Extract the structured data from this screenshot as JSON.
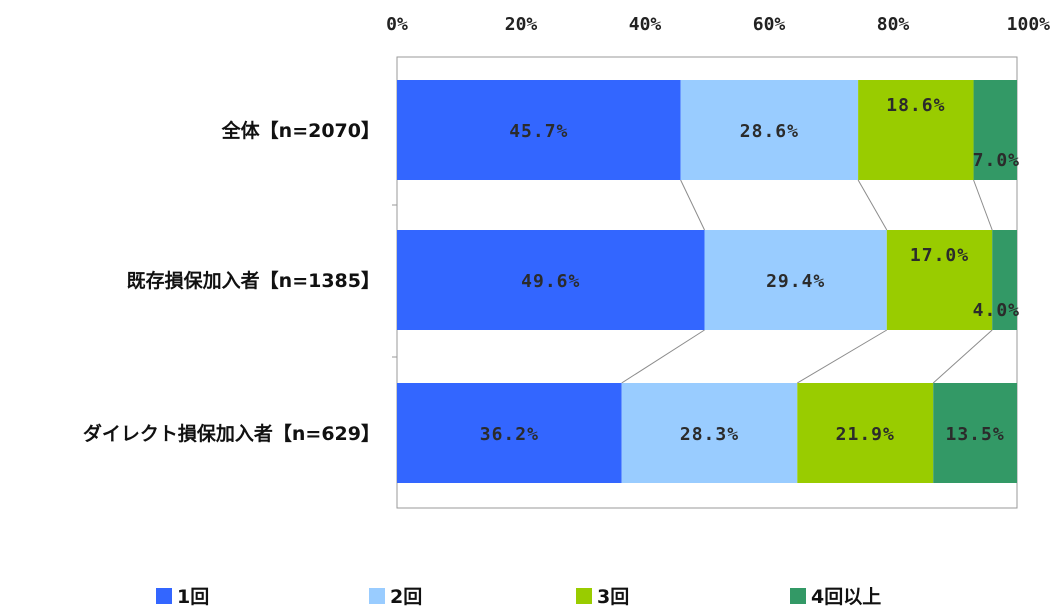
{
  "chart_data": {
    "type": "bar",
    "orientation": "horizontal",
    "stacked": "percent",
    "categories": [
      "全体【n=2070】",
      "既存損保加入者【n=1385】",
      "ダイレクト損保加入者【n=629】"
    ],
    "series": [
      {
        "name": "1回",
        "color": "#3366ff",
        "values": [
          45.7,
          49.6,
          36.2
        ],
        "labels": [
          "45.7%",
          "49.6%",
          "36.2%"
        ]
      },
      {
        "name": "2回",
        "color": "#99ccff",
        "values": [
          28.6,
          29.4,
          28.3
        ],
        "labels": [
          "28.6%",
          "29.4%",
          "28.3%"
        ]
      },
      {
        "name": "3回",
        "color": "#99cc00",
        "values": [
          18.6,
          17.0,
          21.9
        ],
        "labels": [
          "18.6%",
          "17.0%",
          "21.9%"
        ]
      },
      {
        "name": "4回以上",
        "color": "#339966",
        "values": [
          7.0,
          4.0,
          13.5
        ],
        "labels": [
          "7.0%",
          "4.0%",
          "13.5%"
        ]
      }
    ],
    "xlim": [
      0,
      100
    ],
    "xticks": [
      "0%",
      "20%",
      "40%",
      "60%",
      "80%",
      "100%"
    ],
    "x_axis_position": "top",
    "series_lines": true,
    "legend": "bottom"
  }
}
